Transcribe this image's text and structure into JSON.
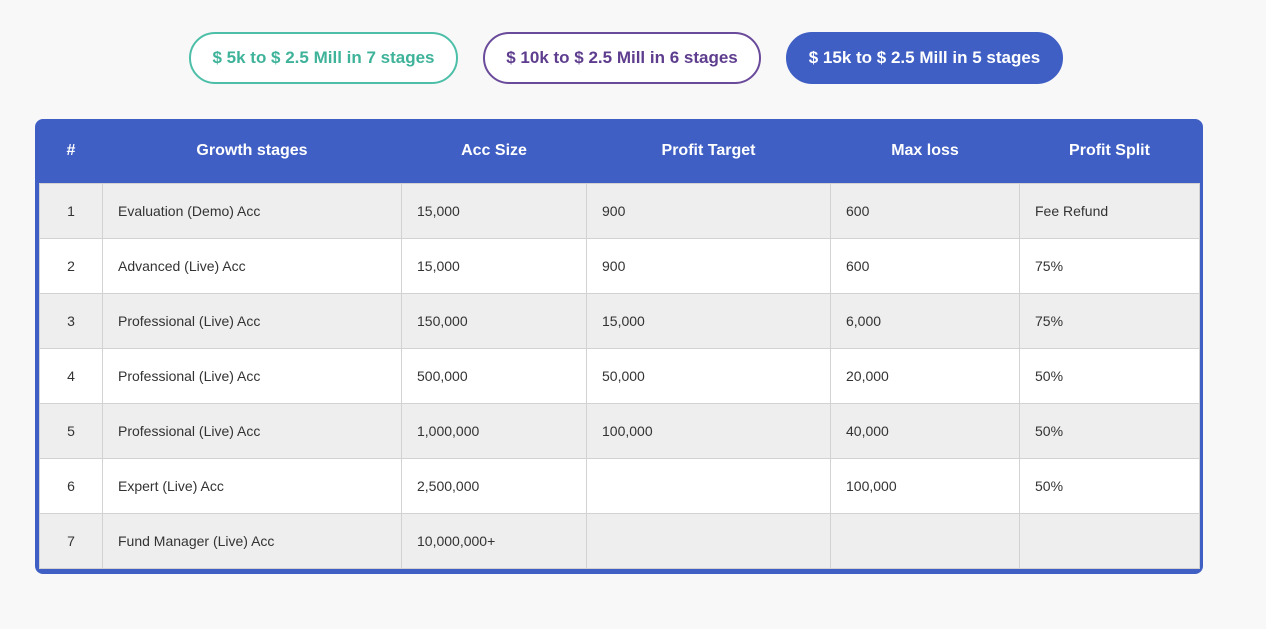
{
  "tabs": [
    {
      "label": "$ 5k to $ 2.5 Mill in 7 stages"
    },
    {
      "label": "$ 10k to $ 2.5 Mill in 6 stages"
    },
    {
      "label": "$ 15k to $ 2.5 Mill in 5 stages",
      "active": true
    }
  ],
  "table": {
    "headers": [
      "#",
      "Growth stages",
      "Acc Size",
      "Profit Target",
      "Max loss",
      "Profit Split"
    ],
    "rows": [
      [
        "1",
        "Evaluation (Demo) Acc",
        "15,000",
        "900",
        "600",
        "Fee Refund"
      ],
      [
        "2",
        "Advanced (Live) Acc",
        "15,000",
        "900",
        "600",
        "75%"
      ],
      [
        "3",
        "Professional (Live) Acc",
        "150,000",
        "15,000",
        "6,000",
        "75%"
      ],
      [
        "4",
        "Professional (Live) Acc",
        "500,000",
        "50,000",
        "20,000",
        "50%"
      ],
      [
        "5",
        "Professional (Live) Acc",
        "1,000,000",
        "100,000",
        "40,000",
        "50%"
      ],
      [
        "6",
        "Expert (Live) Acc",
        "2,500,000",
        "",
        "100,000",
        "50%"
      ],
      [
        "7",
        "Fund Manager (Live) Acc",
        "10,000,000+",
        "",
        "",
        ""
      ]
    ]
  },
  "colors": {
    "accent_blue": "#3f5fc4",
    "teal": "#3fb39a",
    "purple": "#5e3d8e"
  }
}
